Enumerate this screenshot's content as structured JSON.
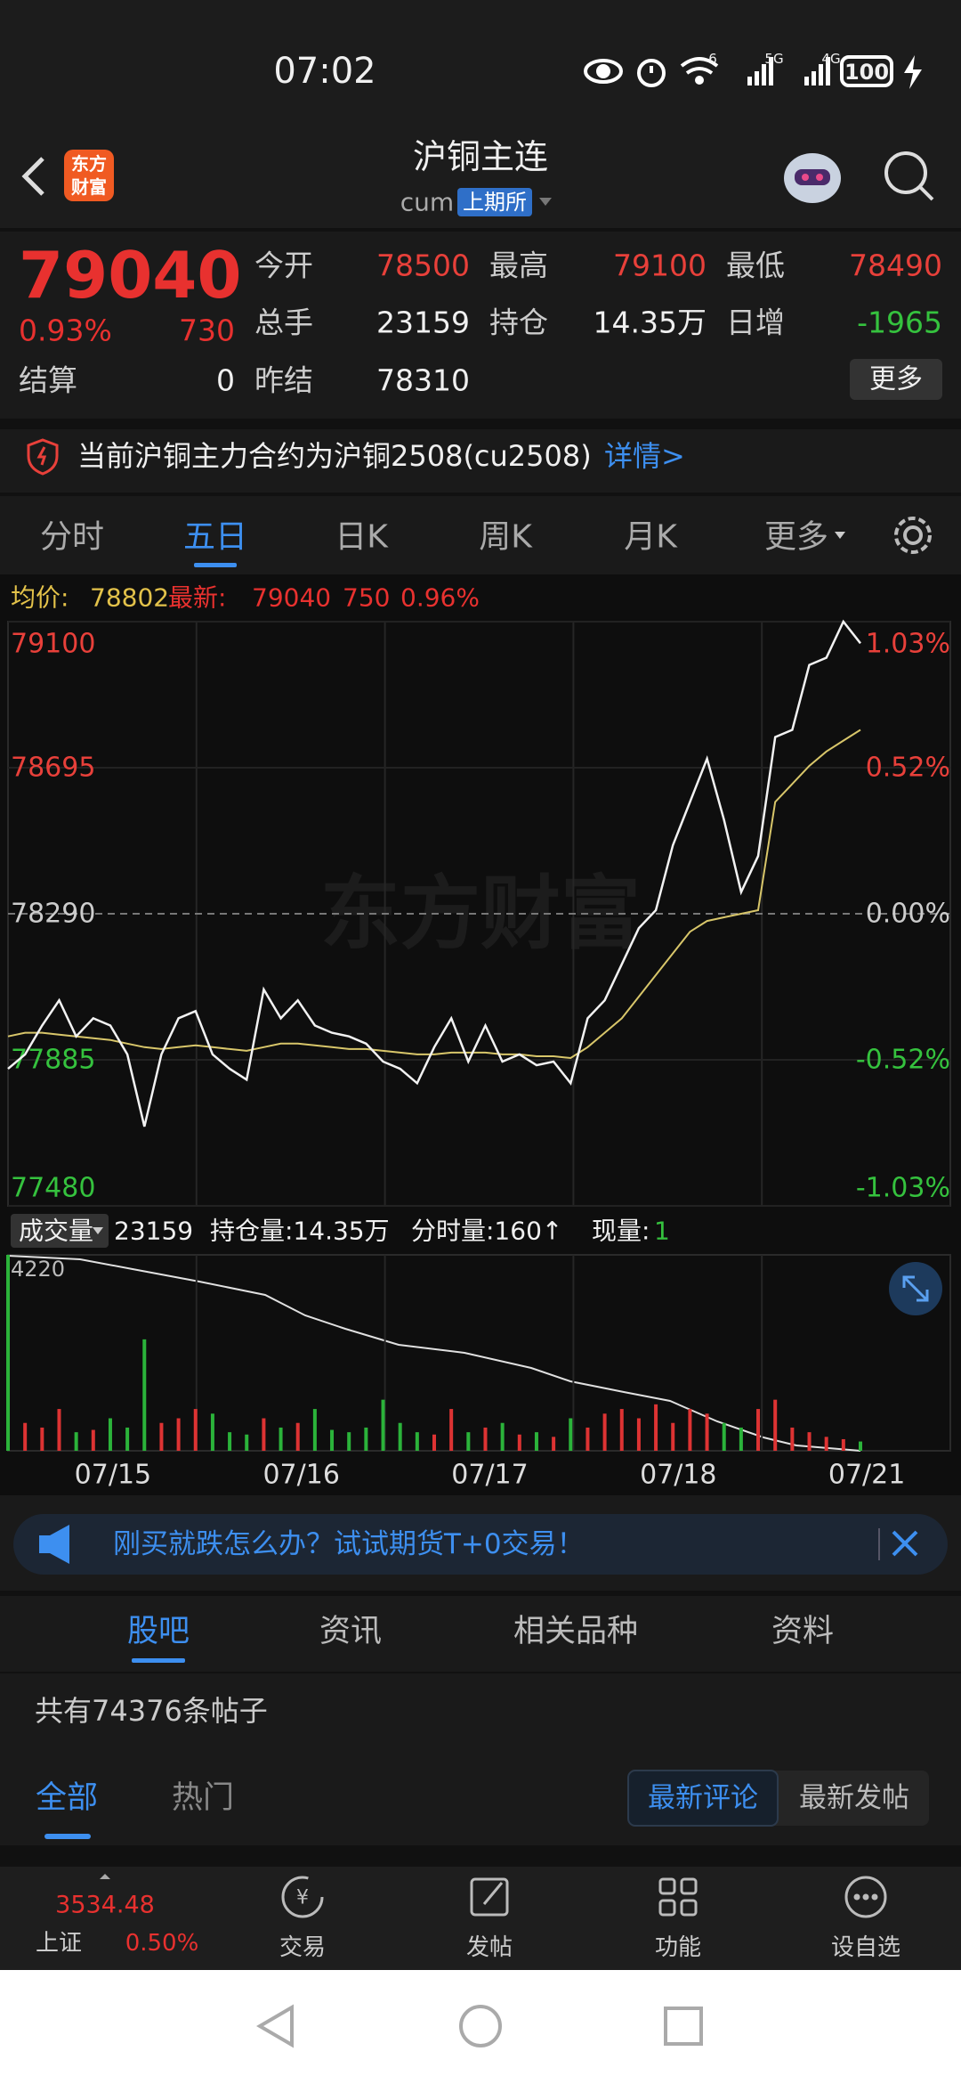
{
  "status_bar": {
    "time": "07:02",
    "signal_labels": [
      "6",
      "5G",
      "4G"
    ],
    "battery": "100"
  },
  "header": {
    "logo": [
      "东方",
      "财富"
    ],
    "title": "沪铜主连",
    "code": "cum",
    "exchange": "上期所"
  },
  "quote": {
    "price": "79040",
    "change_pct": "0.93%",
    "change": "730",
    "settle_label": "结算",
    "settle": "0",
    "fields": [
      {
        "label": "今开",
        "value": "78500"
      },
      {
        "label": "最高",
        "value": "79100"
      },
      {
        "label": "最低",
        "value": "78490"
      },
      {
        "label": "总手",
        "value": "23159"
      },
      {
        "label": "持仓",
        "value": "14.35万"
      },
      {
        "label": "日增",
        "value": "-1965"
      },
      {
        "label": "昨结",
        "value": "78310"
      }
    ],
    "more": "更多"
  },
  "notice": {
    "text": "当前沪铜主力合约为沪铜2508(cu2508)",
    "link": "详情>"
  },
  "chart_tabs": {
    "items": [
      "分时",
      "五日",
      "日K",
      "周K",
      "月K",
      "更多"
    ],
    "active": 1
  },
  "chart": {
    "type": "line",
    "avg_label": "均价:",
    "avg": "78802",
    "latest_label": "最新:",
    "latest": "79040",
    "change": "750",
    "change_pct": "0.96%",
    "watermark": "东方财富",
    "ylim": [
      77480,
      79100
    ],
    "yticks": [
      79100,
      78695,
      78290,
      77885,
      77480
    ],
    "y2ticks": [
      {
        "value": 79100,
        "label": "1.03%"
      },
      {
        "value": 78695,
        "label": "0.52%"
      },
      {
        "value": 78290,
        "label": "0.00%"
      },
      {
        "value": 77885,
        "label": "-0.52%"
      },
      {
        "value": 77480,
        "label": "-1.03%"
      }
    ],
    "days": [
      "07/15",
      "07/16",
      "07/17",
      "07/18",
      "07/21"
    ],
    "series": [
      {
        "name": "最新",
        "color": "#f2f2f2",
        "values": [
          77860,
          77900,
          77980,
          78050,
          77950,
          78000,
          77980,
          77900,
          77700,
          77900,
          78000,
          78020,
          77900,
          77860,
          77830,
          78080,
          78000,
          78050,
          77980,
          77960,
          77950,
          77930,
          77880,
          77860,
          77820,
          77920,
          78000,
          77880,
          77980,
          77880,
          77900,
          77870,
          77880,
          77820,
          78000,
          78050,
          78150,
          78250,
          78300,
          78480,
          78600,
          78720,
          78550,
          78350,
          78450,
          78780,
          78800,
          78980,
          79000,
          79100,
          79040
        ]
      },
      {
        "name": "均价",
        "color": "#d8c66a",
        "values": [
          77950,
          77960,
          77960,
          77955,
          77950,
          77945,
          77940,
          77930,
          77920,
          77915,
          77920,
          77925,
          77920,
          77915,
          77910,
          77920,
          77930,
          77930,
          77925,
          77920,
          77915,
          77915,
          77910,
          77905,
          77900,
          77900,
          77905,
          77905,
          77905,
          77900,
          77900,
          77895,
          77895,
          77890,
          77920,
          77960,
          78000,
          78060,
          78120,
          78180,
          78240,
          78270,
          78280,
          78290,
          78300,
          78600,
          78650,
          78700,
          78740,
          78770,
          78800
        ]
      }
    ],
    "volume": {
      "label": "成交量",
      "total": "23159",
      "oi_text": "持仓量:14.35万",
      "tick_text": "分时量:160↑",
      "now_label": "现量:",
      "now": "1",
      "vlim": [
        0,
        4220
      ],
      "vticks": [
        4220
      ],
      "values": [
        4220,
        600,
        500,
        900,
        400,
        450,
        700,
        500,
        2400,
        600,
        700,
        900,
        800,
        400,
        350,
        700,
        500,
        600,
        900,
        450,
        400,
        500,
        1100,
        600,
        400,
        350,
        900,
        400,
        500,
        600,
        350,
        400,
        300,
        700,
        500,
        800,
        900,
        700,
        1000,
        600,
        900,
        800,
        600,
        500,
        900,
        1100,
        500,
        400,
        300,
        250,
        200
      ]
    }
  },
  "banner": {
    "text": "刚买就跌怎么办？试试期货T+0交易！"
  },
  "community_tabs": {
    "items": [
      "股吧",
      "资讯",
      "相关品种",
      "资料"
    ],
    "active": 0
  },
  "posts": {
    "count_text": "共有74376条帖子",
    "filters": [
      "全部",
      "热门"
    ],
    "sort": [
      "最新评论",
      "最新发帖"
    ]
  },
  "bottom_nav": {
    "index": {
      "value": "3534.48",
      "name": "上证",
      "change": "0.50%"
    },
    "items": [
      "交易",
      "发帖",
      "功能",
      "设自选"
    ]
  }
}
